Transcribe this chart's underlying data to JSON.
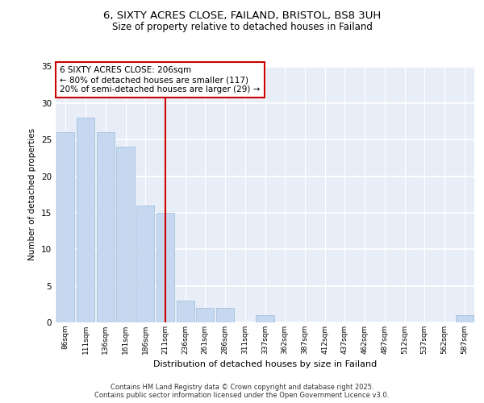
{
  "title_line1": "6, SIXTY ACRES CLOSE, FAILAND, BRISTOL, BS8 3UH",
  "title_line2": "Size of property relative to detached houses in Failand",
  "xlabel": "Distribution of detached houses by size in Failand",
  "ylabel": "Number of detached properties",
  "categories": [
    "86sqm",
    "111sqm",
    "136sqm",
    "161sqm",
    "186sqm",
    "211sqm",
    "236sqm",
    "261sqm",
    "286sqm",
    "311sqm",
    "337sqm",
    "362sqm",
    "387sqm",
    "412sqm",
    "437sqm",
    "462sqm",
    "487sqm",
    "512sqm",
    "537sqm",
    "562sqm",
    "587sqm"
  ],
  "values": [
    26,
    28,
    26,
    24,
    16,
    15,
    3,
    2,
    2,
    0,
    1,
    0,
    0,
    0,
    0,
    0,
    0,
    0,
    0,
    0,
    1
  ],
  "bar_color": "#c5d8f0",
  "bar_edge_color": "#a0bcd8",
  "vline_color": "#cc0000",
  "vline_position": 5,
  "annotation_text": "6 SIXTY ACRES CLOSE: 206sqm\n← 80% of detached houses are smaller (117)\n20% of semi-detached houses are larger (29) →",
  "ylim": [
    0,
    35
  ],
  "yticks": [
    0,
    5,
    10,
    15,
    20,
    25,
    30,
    35
  ],
  "background_color": "#e8eef8",
  "grid_color": "#ffffff",
  "footer_text": "Contains HM Land Registry data © Crown copyright and database right 2025.\nContains public sector information licensed under the Open Government Licence v3.0."
}
